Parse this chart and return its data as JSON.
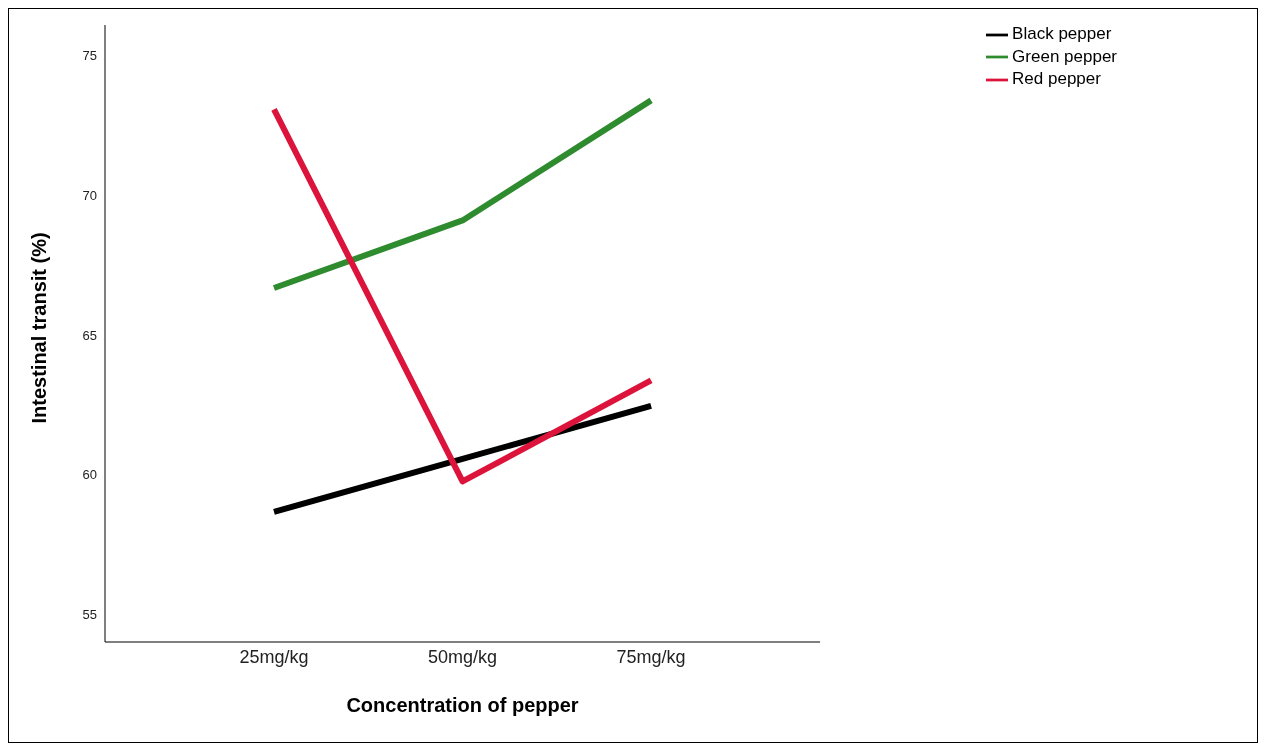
{
  "chart_data": {
    "type": "line",
    "xlabel": "Concentration of pepper",
    "ylabel": "Intestinal transit (%)",
    "categories": [
      "25mg/kg",
      "50mg/kg",
      "75mg/kg"
    ],
    "series": [
      {
        "name": "Black pepper",
        "color": "#000000",
        "values": [
          58.66,
          60.56,
          62.46
        ]
      },
      {
        "name": "Green pepper",
        "color": "#2e8b2e",
        "values": [
          66.68,
          69.1,
          73.4
        ]
      },
      {
        "name": "Red pepper",
        "color": "#dc143c",
        "values": [
          73.08,
          59.75,
          63.37
        ]
      }
    ],
    "ylim": [
      54,
      76.1
    ],
    "yticks": [
      55,
      60,
      65,
      70,
      75
    ],
    "grid": false,
    "legend": "top right"
  }
}
